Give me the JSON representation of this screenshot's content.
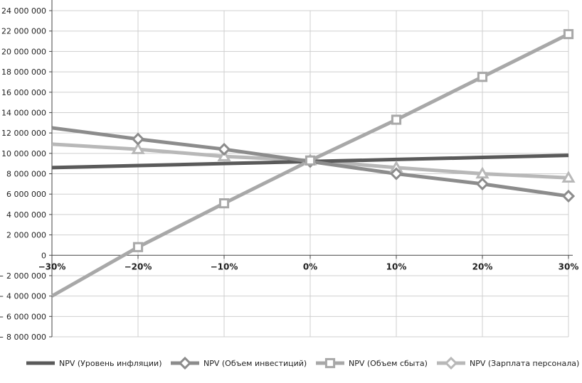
{
  "chart_data": {
    "type": "line",
    "categories": [
      "−30%",
      "−20%",
      "−10%",
      "0%",
      "10%",
      "20%",
      "30%"
    ],
    "x_values": [
      -30,
      -20,
      -10,
      0,
      10,
      20,
      30
    ],
    "ylim": [
      -8000000,
      24000000
    ],
    "y_ticks": [
      24000000,
      22000000,
      20000000,
      18000000,
      16000000,
      14000000,
      12000000,
      10000000,
      8000000,
      6000000,
      4000000,
      2000000,
      0,
      -2000000,
      -4000000,
      -6000000,
      -8000000
    ],
    "y_tick_labels": [
      "24 000 000",
      "22 000 000",
      "20 000 000",
      "18 000 000",
      "16 000 000",
      "14 000 000",
      "12 000 000",
      "10 000 000",
      "8 000 000",
      "6 000 000",
      "4 000 000",
      "2 000 000",
      "0",
      "− 2 000 000",
      "− 4 000 000",
      "− 6 000 000",
      "− 8 000 000"
    ],
    "grid": true,
    "legend_position": "bottom",
    "series": [
      {
        "name": "NPV (Уровень инфляции)",
        "color": "#5a5a5a",
        "marker": "none",
        "values": [
          8600000,
          8800000,
          9000000,
          9200000,
          9400000,
          9600000,
          9800000
        ]
      },
      {
        "name": "NPV (Объем инвестиций)",
        "color": "#8c8c8c",
        "marker": "diamond",
        "values": [
          12500000,
          11400000,
          10400000,
          9200000,
          8000000,
          7000000,
          5800000
        ]
      },
      {
        "name": "NPV (Объем сбыта)",
        "color": "#a8a8a8",
        "marker": "square",
        "values": [
          -4000000,
          800000,
          5100000,
          9300000,
          13300000,
          17500000,
          21700000
        ]
      },
      {
        "name": "NPV (Зарплата персонала)",
        "color": "#b8b8b8",
        "marker": "triangle",
        "legend_marker": "diamond",
        "values": [
          10900000,
          10400000,
          9700000,
          9300000,
          8600000,
          8000000,
          7600000
        ]
      }
    ]
  }
}
